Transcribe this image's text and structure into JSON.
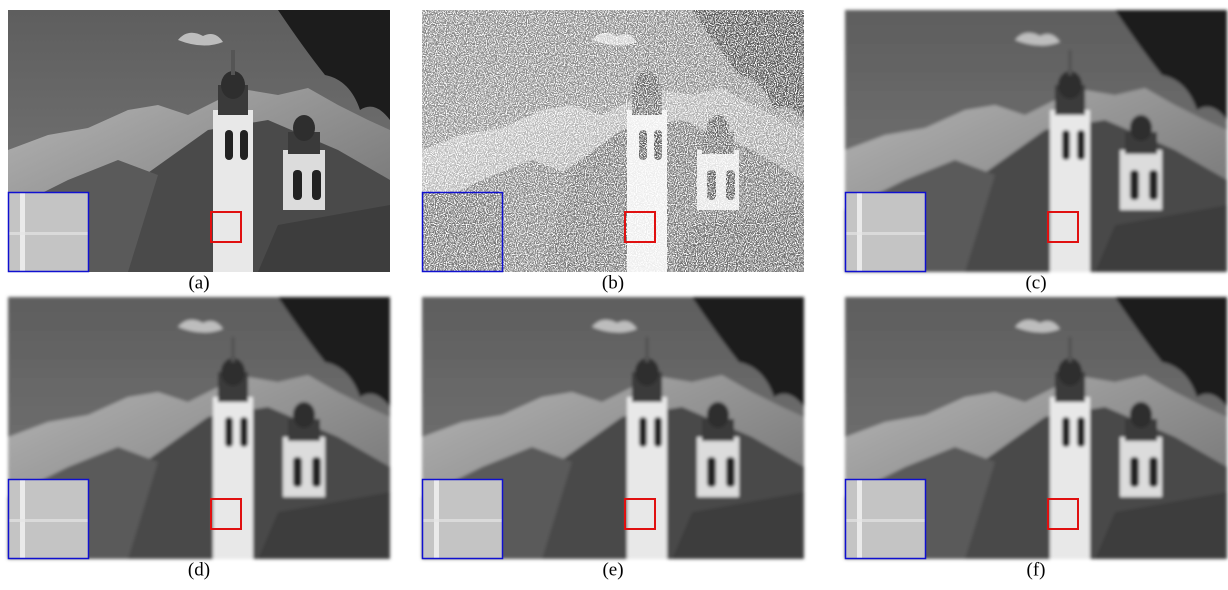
{
  "figure": {
    "panels": [
      "(a)",
      "(b)",
      "(c)",
      "(d)",
      "(e)",
      "(f)"
    ]
  }
}
